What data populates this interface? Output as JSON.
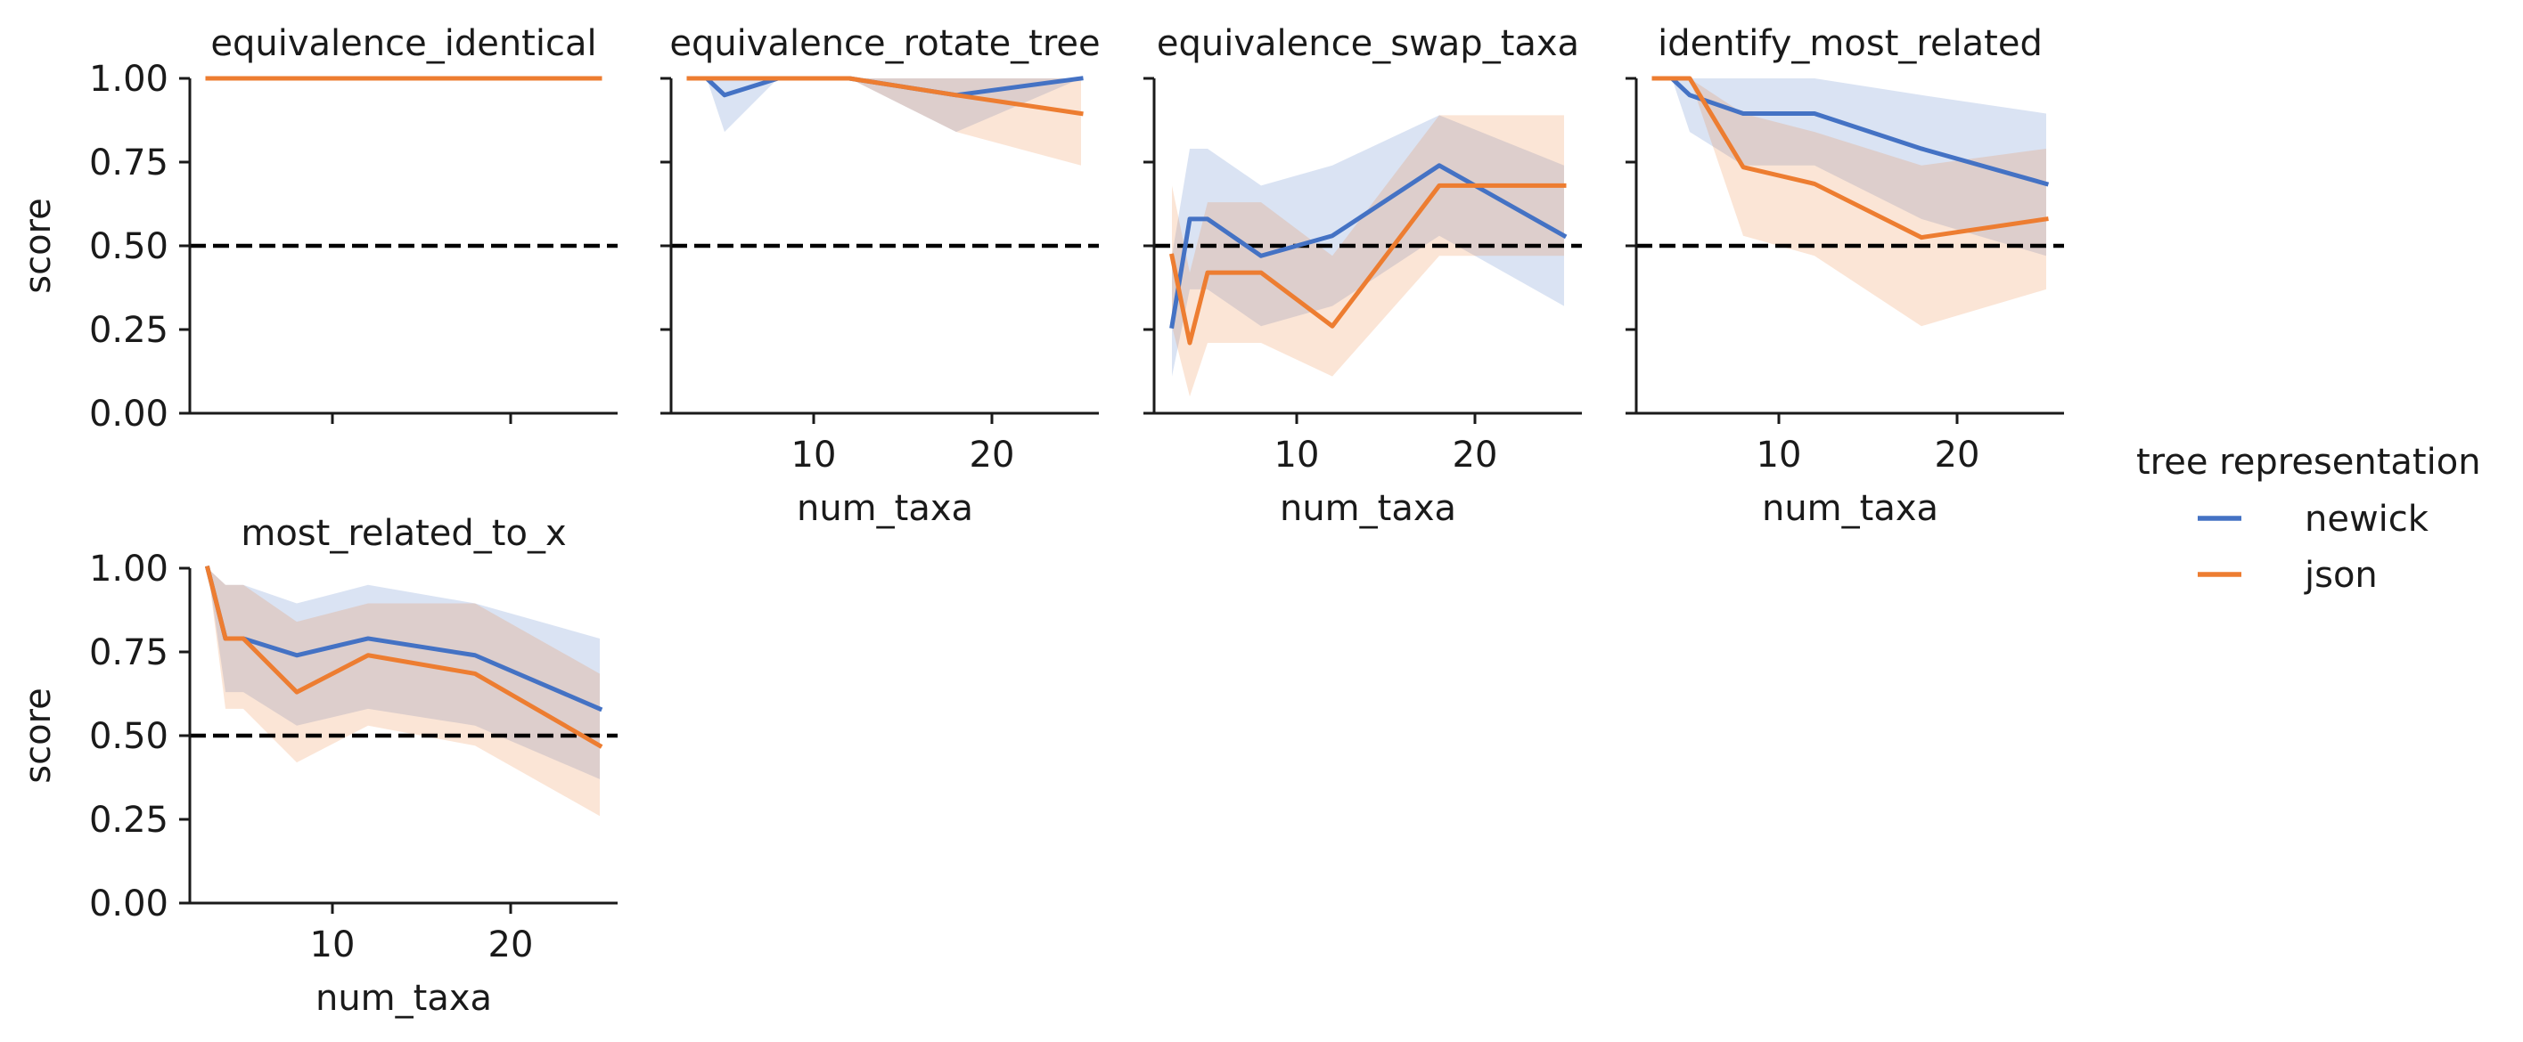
{
  "figure": {
    "legend_title": "tree representation",
    "legend_position": "right",
    "colors": {
      "newick": "#4472C4",
      "json": "#ED7D31",
      "reference": "#000000"
    },
    "reference_line": {
      "y": 0.5,
      "style": "dashed"
    }
  },
  "chart_data": [
    {
      "type": "line",
      "title": "equivalence_identical",
      "xlabel": "",
      "ylabel": "score",
      "xlim": [
        2,
        26
      ],
      "ylim": [
        0,
        1
      ],
      "xticks": [
        10,
        20
      ],
      "xtick_labels": [],
      "yticks": [
        0.0,
        0.25,
        0.5,
        0.75,
        1.0
      ],
      "ytick_labels": [
        "0.00",
        "0.25",
        "0.50",
        "0.75",
        "1.00"
      ],
      "grid": false,
      "series": [
        {
          "name": "newick",
          "color": "#4472C4",
          "x": [
            3,
            4,
            5,
            8,
            12,
            18,
            25
          ],
          "y": [
            1,
            1,
            1,
            1,
            1,
            1,
            1
          ],
          "ci_low": [
            1,
            1,
            1,
            1,
            1,
            1,
            1
          ],
          "ci_high": [
            1,
            1,
            1,
            1,
            1,
            1,
            1
          ]
        },
        {
          "name": "json",
          "color": "#ED7D31",
          "x": [
            3,
            4,
            5,
            8,
            12,
            18,
            25
          ],
          "y": [
            1,
            1,
            1,
            1,
            1,
            1,
            1
          ],
          "ci_low": [
            1,
            1,
            1,
            1,
            1,
            1,
            1
          ],
          "ci_high": [
            1,
            1,
            1,
            1,
            1,
            1,
            1
          ]
        }
      ]
    },
    {
      "type": "line",
      "title": "equivalence_rotate_tree",
      "xlabel": "num_taxa",
      "ylabel": "",
      "xlim": [
        2,
        26
      ],
      "ylim": [
        0,
        1
      ],
      "xticks": [
        10,
        20
      ],
      "xtick_labels": [
        "10",
        "20"
      ],
      "yticks": [
        0.0,
        0.25,
        0.5,
        0.75,
        1.0
      ],
      "ytick_labels": [],
      "grid": false,
      "series": [
        {
          "name": "newick",
          "color": "#4472C4",
          "x": [
            3,
            4,
            5,
            8,
            12,
            18,
            25
          ],
          "y": [
            1.0,
            1.0,
            0.95,
            1.0,
            1.0,
            0.95,
            1.0
          ],
          "ci_low": [
            1.0,
            1.0,
            0.84,
            1.0,
            1.0,
            0.84,
            1.0
          ],
          "ci_high": [
            1.0,
            1.0,
            1.0,
            1.0,
            1.0,
            1.0,
            1.0
          ]
        },
        {
          "name": "json",
          "color": "#ED7D31",
          "x": [
            3,
            4,
            5,
            8,
            12,
            18,
            25
          ],
          "y": [
            1.0,
            1.0,
            1.0,
            1.0,
            1.0,
            0.95,
            0.895
          ],
          "ci_low": [
            1.0,
            1.0,
            1.0,
            1.0,
            1.0,
            0.84,
            0.74
          ],
          "ci_high": [
            1.0,
            1.0,
            1.0,
            1.0,
            1.0,
            1.0,
            1.0
          ]
        }
      ]
    },
    {
      "type": "line",
      "title": "equivalence_swap_taxa",
      "xlabel": "num_taxa",
      "ylabel": "",
      "xlim": [
        2,
        26
      ],
      "ylim": [
        0,
        1
      ],
      "xticks": [
        10,
        20
      ],
      "xtick_labels": [
        "10",
        "20"
      ],
      "yticks": [
        0.0,
        0.25,
        0.5,
        0.75,
        1.0
      ],
      "ytick_labels": [],
      "grid": false,
      "series": [
        {
          "name": "newick",
          "color": "#4472C4",
          "x": [
            3,
            4,
            5,
            8,
            12,
            18,
            25
          ],
          "y": [
            0.26,
            0.58,
            0.58,
            0.47,
            0.53,
            0.74,
            0.53
          ],
          "ci_low": [
            0.11,
            0.37,
            0.37,
            0.26,
            0.32,
            0.53,
            0.32
          ],
          "ci_high": [
            0.47,
            0.79,
            0.79,
            0.68,
            0.74,
            0.89,
            0.74
          ]
        },
        {
          "name": "json",
          "color": "#ED7D31",
          "x": [
            3,
            4,
            5,
            8,
            12,
            18,
            25
          ],
          "y": [
            0.47,
            0.21,
            0.42,
            0.42,
            0.26,
            0.68,
            0.68
          ],
          "ci_low": [
            0.26,
            0.05,
            0.21,
            0.21,
            0.11,
            0.47,
            0.47
          ],
          "ci_high": [
            0.68,
            0.42,
            0.63,
            0.63,
            0.47,
            0.89,
            0.89
          ]
        }
      ]
    },
    {
      "type": "line",
      "title": "identify_most_related",
      "xlabel": "num_taxa",
      "ylabel": "",
      "xlim": [
        2,
        26
      ],
      "ylim": [
        0,
        1
      ],
      "xticks": [
        10,
        20
      ],
      "xtick_labels": [
        "10",
        "20"
      ],
      "yticks": [
        0.0,
        0.25,
        0.5,
        0.75,
        1.0
      ],
      "ytick_labels": [],
      "grid": false,
      "series": [
        {
          "name": "newick",
          "color": "#4472C4",
          "x": [
            3,
            4,
            5,
            8,
            12,
            18,
            25
          ],
          "y": [
            1.0,
            1.0,
            0.95,
            0.895,
            0.895,
            0.79,
            0.685
          ],
          "ci_low": [
            1.0,
            1.0,
            0.84,
            0.74,
            0.74,
            0.58,
            0.47
          ],
          "ci_high": [
            1.0,
            1.0,
            1.0,
            1.0,
            1.0,
            0.95,
            0.895
          ]
        },
        {
          "name": "json",
          "color": "#ED7D31",
          "x": [
            3,
            4,
            5,
            8,
            12,
            18,
            25
          ],
          "y": [
            1.0,
            1.0,
            1.0,
            0.735,
            0.685,
            0.525,
            0.58
          ],
          "ci_low": [
            1.0,
            1.0,
            1.0,
            0.53,
            0.47,
            0.26,
            0.37
          ],
          "ci_high": [
            1.0,
            1.0,
            1.0,
            0.895,
            0.84,
            0.74,
            0.79
          ]
        }
      ]
    },
    {
      "type": "line",
      "title": "most_related_to_x",
      "xlabel": "num_taxa",
      "ylabel": "score",
      "xlim": [
        2,
        26
      ],
      "ylim": [
        0,
        1
      ],
      "xticks": [
        10,
        20
      ],
      "xtick_labels": [
        "10",
        "20"
      ],
      "yticks": [
        0.0,
        0.25,
        0.5,
        0.75,
        1.0
      ],
      "ytick_labels": [
        "0.00",
        "0.25",
        "0.50",
        "0.75",
        "1.00"
      ],
      "grid": false,
      "series": [
        {
          "name": "newick",
          "color": "#4472C4",
          "x": [
            3,
            4,
            5,
            8,
            12,
            18,
            25
          ],
          "y": [
            1.0,
            0.79,
            0.79,
            0.74,
            0.79,
            0.74,
            0.58
          ],
          "ci_low": [
            1.0,
            0.63,
            0.63,
            0.53,
            0.58,
            0.53,
            0.37
          ],
          "ci_high": [
            1.0,
            0.95,
            0.95,
            0.895,
            0.95,
            0.895,
            0.79
          ]
        },
        {
          "name": "json",
          "color": "#ED7D31",
          "x": [
            3,
            4,
            5,
            8,
            12,
            18,
            25
          ],
          "y": [
            1.0,
            0.79,
            0.79,
            0.63,
            0.74,
            0.685,
            0.47
          ],
          "ci_low": [
            1.0,
            0.58,
            0.58,
            0.42,
            0.53,
            0.47,
            0.26
          ],
          "ci_high": [
            1.0,
            0.95,
            0.95,
            0.84,
            0.895,
            0.895,
            0.685
          ]
        }
      ]
    }
  ]
}
